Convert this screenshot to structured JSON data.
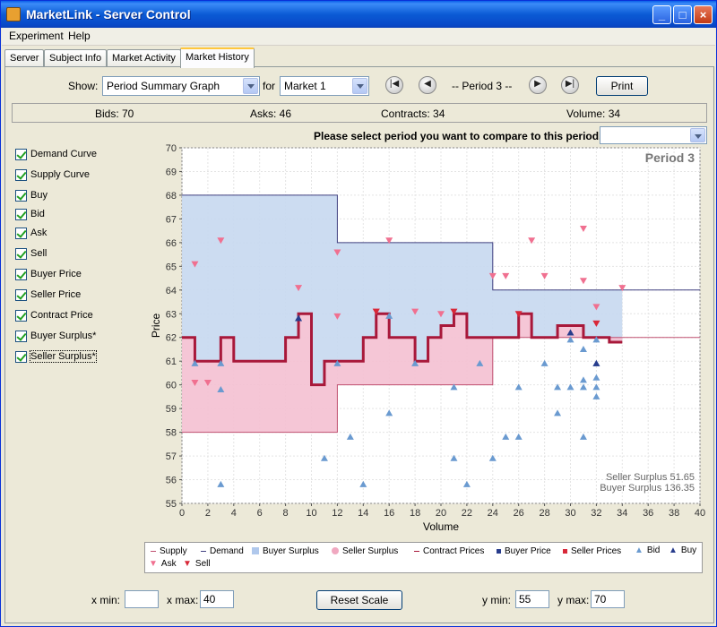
{
  "window": {
    "title": "MarketLink - Server Control"
  },
  "menu": [
    "Experiment",
    "Help"
  ],
  "tabs": [
    "Server",
    "Subject Info",
    "Market Activity",
    "Market History"
  ],
  "controls": {
    "show_label": "Show:",
    "show_value": "Period Summary Graph",
    "for_label": "for",
    "market_value": "Market 1",
    "period_label": "-- Period 3 --",
    "print_label": "Print"
  },
  "stats": {
    "bids": "Bids: 70",
    "asks": "Asks: 46",
    "contracts": "Contracts: 34",
    "volume": "Volume: 34"
  },
  "compare_label": "Please select period you want to compare to this period.",
  "checkboxes": [
    "Demand Curve",
    "Supply Curve",
    "Buy",
    "Bid",
    "Ask",
    "Sell",
    "Buyer Price",
    "Seller Price",
    "Contract Price",
    "Buyer Surplus*",
    "Seller Surplus*"
  ],
  "bottom": {
    "xmin_label": "x min:",
    "xmin_value": "",
    "xmax_label": "x max:",
    "xmax_value": "40",
    "reset_label": "Reset Scale",
    "ymin_label": "y min:",
    "ymin_value": "55",
    "ymax_label": "y max:",
    "ymax_value": "70"
  },
  "legend": [
    "Supply",
    "Demand",
    "Buyer Surplus",
    "Seller Surplus",
    "Contract Prices",
    "Buyer Price",
    "Seller Prices",
    "Bid",
    "Buy",
    "Ask",
    "Sell"
  ],
  "colors": {
    "buyer_surplus": "#c6d8f0",
    "seller_surplus": "#f4c0d2",
    "contract": "#a8183a",
    "bid": "#6a9ad0",
    "buy": "#283c8c",
    "ask": "#f07090",
    "sell": "#d82838",
    "supply": "#c05070",
    "demand": "#404080"
  },
  "chart_data": {
    "type": "line",
    "title": "Period 3",
    "xlabel": "Volume",
    "ylabel": "Price",
    "xlim": [
      0,
      40
    ],
    "ylim": [
      55,
      70
    ],
    "xticks": [
      0,
      2,
      4,
      6,
      8,
      10,
      12,
      14,
      16,
      18,
      20,
      22,
      24,
      26,
      28,
      30,
      32,
      34,
      36,
      38,
      40
    ],
    "yticks": [
      55,
      56,
      57,
      58,
      59,
      60,
      61,
      62,
      63,
      64,
      65,
      66,
      67,
      68,
      69,
      70
    ],
    "demand": [
      [
        0,
        68
      ],
      [
        12,
        68
      ],
      [
        12,
        66
      ],
      [
        24,
        66
      ],
      [
        24,
        64
      ],
      [
        40,
        64
      ]
    ],
    "supply": [
      [
        0,
        58
      ],
      [
        12,
        58
      ],
      [
        12,
        60
      ],
      [
        24,
        60
      ],
      [
        24,
        62
      ],
      [
        40,
        62
      ]
    ],
    "contract_prices": [
      [
        0,
        62
      ],
      [
        1,
        62
      ],
      [
        1,
        61
      ],
      [
        3,
        61
      ],
      [
        3,
        62
      ],
      [
        4,
        62
      ],
      [
        4,
        61
      ],
      [
        8,
        61
      ],
      [
        8,
        62
      ],
      [
        9,
        62
      ],
      [
        9,
        63
      ],
      [
        10,
        63
      ],
      [
        10,
        60
      ],
      [
        11,
        60
      ],
      [
        11,
        61
      ],
      [
        14,
        61
      ],
      [
        14,
        62
      ],
      [
        15,
        62
      ],
      [
        15,
        63
      ],
      [
        16,
        63
      ],
      [
        16,
        62
      ],
      [
        18,
        62
      ],
      [
        18,
        61
      ],
      [
        19,
        61
      ],
      [
        19,
        62
      ],
      [
        20,
        62
      ],
      [
        20,
        62.5
      ],
      [
        21,
        62.5
      ],
      [
        21,
        63
      ],
      [
        22,
        63
      ],
      [
        22,
        62
      ],
      [
        26,
        62
      ],
      [
        26,
        63
      ],
      [
        27,
        63
      ],
      [
        27,
        62
      ],
      [
        29,
        62
      ],
      [
        29,
        62.5
      ],
      [
        31,
        62.5
      ],
      [
        31,
        62
      ],
      [
        33,
        62
      ],
      [
        33,
        61.8
      ],
      [
        34,
        61.8
      ]
    ],
    "bids": [
      [
        1,
        60.9
      ],
      [
        3,
        59.8
      ],
      [
        3,
        55.8
      ],
      [
        3,
        60.9
      ],
      [
        9,
        62.8
      ],
      [
        11,
        56.9
      ],
      [
        12,
        60.9
      ],
      [
        13,
        57.8
      ],
      [
        14,
        55.8
      ],
      [
        16,
        58.8
      ],
      [
        16,
        62.9
      ],
      [
        18,
        60.9
      ],
      [
        21,
        59.9
      ],
      [
        21,
        56.9
      ],
      [
        22,
        55.8
      ],
      [
        23,
        60.9
      ],
      [
        24,
        56.9
      ],
      [
        25,
        57.8
      ],
      [
        26,
        57.8
      ],
      [
        26,
        59.9
      ],
      [
        28,
        60.9
      ],
      [
        29,
        59.9
      ],
      [
        29,
        58.8
      ],
      [
        30,
        59.9
      ],
      [
        30,
        61.9
      ],
      [
        31,
        60.2
      ],
      [
        31,
        59.9
      ],
      [
        31,
        57.8
      ],
      [
        31,
        61.5
      ],
      [
        32,
        59.9
      ],
      [
        32,
        59.5
      ],
      [
        32,
        61.9
      ],
      [
        32,
        60.3
      ],
      [
        32,
        60.9
      ]
    ],
    "buys": [
      [
        9,
        62.8
      ],
      [
        32,
        60.9
      ],
      [
        30,
        62.2
      ]
    ],
    "asks": [
      [
        1,
        65.1
      ],
      [
        1,
        60.1
      ],
      [
        2,
        60.1
      ],
      [
        3,
        66.1
      ],
      [
        9,
        64.1
      ],
      [
        12,
        65.6
      ],
      [
        12,
        62.9
      ],
      [
        16,
        66.1
      ],
      [
        15,
        63.1
      ],
      [
        18,
        63.1
      ],
      [
        20,
        63.0
      ],
      [
        24,
        64.6
      ],
      [
        25,
        64.6
      ],
      [
        27,
        66.1
      ],
      [
        28,
        64.6
      ],
      [
        31,
        66.6
      ],
      [
        31,
        64.4
      ],
      [
        32,
        63.3
      ],
      [
        32,
        62.6
      ],
      [
        34,
        64.1
      ]
    ],
    "sells": [
      [
        15,
        63.1
      ],
      [
        21,
        63.1
      ],
      [
        26,
        63.0
      ],
      [
        32,
        62.6
      ]
    ],
    "annotations": [
      "Seller Surplus 51.65",
      "Buyer Surplus 136.35"
    ]
  }
}
